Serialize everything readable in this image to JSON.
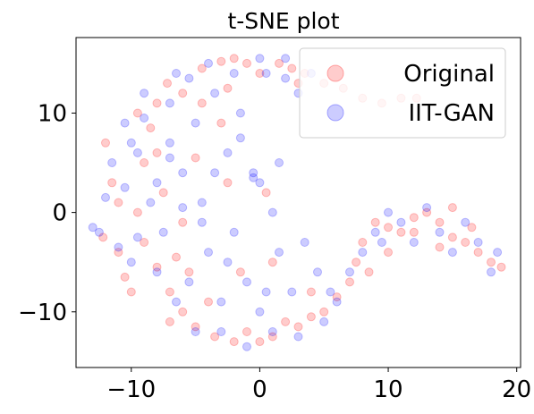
{
  "chart_data": {
    "type": "scatter",
    "title": "t-SNE plot",
    "xlabel": "",
    "ylabel": "",
    "xlim": [
      -14.3,
      20.3
    ],
    "ylim": [
      -15.6,
      17.6
    ],
    "xticks": [
      -10,
      0,
      10,
      20
    ],
    "yticks": [
      -10,
      0,
      10
    ],
    "grid": false,
    "legend": {
      "placement": "top-right"
    },
    "series": [
      {
        "name": "Original",
        "color": "#ff0000",
        "alpha": 0.2,
        "points": [
          [
            -12,
            7
          ],
          [
            -11.5,
            3
          ],
          [
            -12.2,
            -2.5
          ],
          [
            -11,
            -4
          ],
          [
            -10.5,
            -6.5
          ],
          [
            -9.5,
            0
          ],
          [
            -9,
            5
          ],
          [
            -8.5,
            8.5
          ],
          [
            -8,
            11
          ],
          [
            -7.2,
            13
          ],
          [
            -6.5,
            -4.5
          ],
          [
            -7,
            -8
          ],
          [
            -6,
            -10
          ],
          [
            -5,
            -11.5
          ],
          [
            -4.5,
            14.5
          ],
          [
            -3,
            15.2
          ],
          [
            -2,
            15.5
          ],
          [
            -1,
            15
          ],
          [
            -3.5,
            -12.5
          ],
          [
            -2,
            -13
          ],
          [
            -1,
            -12
          ],
          [
            0,
            -13
          ],
          [
            1,
            -12.5
          ],
          [
            2,
            -11
          ],
          [
            3,
            -11.5
          ],
          [
            4,
            -10.5
          ],
          [
            5,
            -10
          ],
          [
            6,
            -8.5
          ],
          [
            7,
            -7
          ],
          [
            7.5,
            -5
          ],
          [
            8,
            -3
          ],
          [
            9,
            -1
          ],
          [
            10,
            -1.5
          ],
          [
            11,
            -2
          ],
          [
            12,
            -0.5
          ],
          [
            13,
            0
          ],
          [
            14,
            -1
          ],
          [
            15,
            -2.5
          ],
          [
            16,
            -3
          ],
          [
            17,
            -4
          ],
          [
            18,
            -5
          ],
          [
            18.8,
            -5.5
          ],
          [
            1.5,
            15
          ],
          [
            2.5,
            14.5
          ],
          [
            3.5,
            14
          ],
          [
            5,
            13
          ],
          [
            6.5,
            12.5
          ],
          [
            8,
            11.5
          ],
          [
            9.5,
            11
          ],
          [
            11,
            11.5
          ],
          [
            12.2,
            11.5
          ],
          [
            -9.5,
            10
          ],
          [
            -8,
            6
          ],
          [
            -7.5,
            2
          ],
          [
            -6,
            -1
          ],
          [
            -5.5,
            -6
          ],
          [
            -4,
            -9
          ],
          [
            -2.5,
            3
          ],
          [
            -1.5,
            -6
          ],
          [
            0.5,
            2
          ],
          [
            1,
            -5
          ],
          [
            -3,
            9
          ],
          [
            -4.5,
            11
          ],
          [
            -6,
            12
          ],
          [
            -10,
            -8
          ],
          [
            -11,
            1
          ],
          [
            -9,
            -3
          ],
          [
            -8,
            -5.5
          ],
          [
            4,
            -8
          ],
          [
            8.5,
            -6
          ],
          [
            10,
            -4
          ],
          [
            12,
            -2
          ],
          [
            14,
            -3.5
          ],
          [
            16.5,
            -1.5
          ],
          [
            15,
            0.5
          ],
          [
            3,
            13
          ],
          [
            0,
            14
          ],
          [
            -2.5,
            12.5
          ],
          [
            -5,
            5.5
          ],
          [
            -7,
            -11
          ]
        ]
      },
      {
        "name": "IIT-GAN",
        "color": "#0000ff",
        "alpha": 0.2,
        "points": [
          [
            -13,
            -1.5
          ],
          [
            -12,
            1.5
          ],
          [
            -11.5,
            5
          ],
          [
            -10.5,
            9
          ],
          [
            -10,
            -5
          ],
          [
            -9,
            12
          ],
          [
            -8,
            3
          ],
          [
            -7.5,
            -2
          ],
          [
            -7,
            7
          ],
          [
            -6.5,
            14
          ],
          [
            -6,
            4
          ],
          [
            -5.5,
            -7
          ],
          [
            -5,
            9
          ],
          [
            -4.5,
            1
          ],
          [
            -4,
            -4
          ],
          [
            -3.5,
            12
          ],
          [
            -3,
            -9
          ],
          [
            -2.5,
            6
          ],
          [
            -2,
            -2
          ],
          [
            -1.5,
            10
          ],
          [
            -1,
            -7
          ],
          [
            -0.5,
            4
          ],
          [
            0,
            -10
          ],
          [
            0.5,
            14
          ],
          [
            1,
            0
          ],
          [
            1.5,
            -4
          ],
          [
            2,
            15.5
          ],
          [
            2.5,
            -8
          ],
          [
            3,
            12
          ],
          [
            3.5,
            -3
          ],
          [
            4,
            14
          ],
          [
            4.5,
            -6
          ],
          [
            5,
            -11
          ],
          [
            6,
            -9
          ],
          [
            7,
            -6
          ],
          [
            8,
            -4
          ],
          [
            9,
            -2
          ],
          [
            10,
            0
          ],
          [
            11,
            -1
          ],
          [
            12,
            -3
          ],
          [
            13,
            0.5
          ],
          [
            14,
            -2
          ],
          [
            15,
            -4
          ],
          [
            16,
            -1
          ],
          [
            17,
            -3
          ],
          [
            18,
            -6
          ],
          [
            18.5,
            -4
          ],
          [
            -0.5,
            3.5
          ],
          [
            0,
            3
          ],
          [
            -12.5,
            -2
          ],
          [
            -11,
            -3.5
          ],
          [
            -9.5,
            6
          ],
          [
            -8.5,
            1
          ],
          [
            -8,
            -6
          ],
          [
            -6.5,
            -9
          ],
          [
            -5,
            -12
          ],
          [
            -3,
            -12
          ],
          [
            -1,
            -13.5
          ],
          [
            1,
            -12
          ],
          [
            3,
            -12.5
          ],
          [
            -9,
            9.5
          ],
          [
            -7,
            11
          ],
          [
            -5.5,
            13.5
          ],
          [
            -4,
            15
          ],
          [
            -2,
            14
          ],
          [
            0,
            15.5
          ],
          [
            2,
            13.5
          ],
          [
            -10.5,
            2.5
          ],
          [
            -9.5,
            -2.5
          ],
          [
            -7,
            5.5
          ],
          [
            -4.5,
            -1
          ],
          [
            -2.5,
            -5
          ],
          [
            -1.5,
            7.5
          ],
          [
            1.5,
            5
          ],
          [
            0.5,
            -8
          ],
          [
            -3.5,
            4
          ],
          [
            -6,
            0.5
          ],
          [
            -10,
            7
          ],
          [
            5.5,
            -8
          ],
          [
            9.5,
            -3
          ]
        ]
      }
    ]
  }
}
